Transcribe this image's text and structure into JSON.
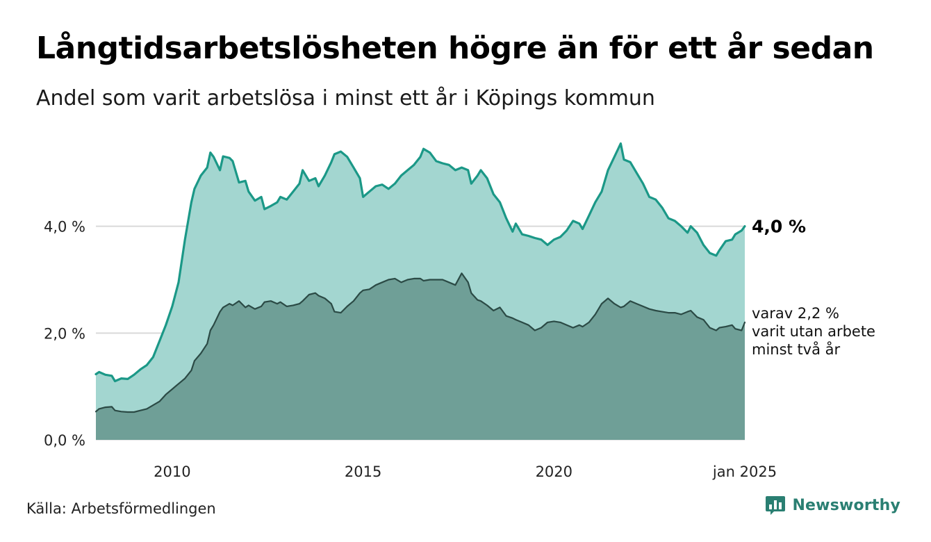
{
  "title": "Långtidsarbetslösheten högre än för ett år sedan",
  "subtitle": "Andel som varit arbetslösa i minst ett år i Köpings kommun",
  "source": "Källa: Arbetsförmedlingen",
  "brand": {
    "name": "Newsworthy",
    "icon": "bar-chart-icon"
  },
  "colors": {
    "series1_line": "#1b9887",
    "series1_fill": "#a3d6d0",
    "series2_line": "#2b4a45",
    "series2_fill": "#6f9f97",
    "grid": "#d9d9d9",
    "brand": "#2a7f72"
  },
  "chart_data": {
    "type": "area",
    "title": "Långtidsarbetslösheten högre än för ett år sedan",
    "subtitle": "Andel som varit arbetslösa i minst ett år i Köpings kommun",
    "x_range": [
      "2008-01",
      "2025-01"
    ],
    "ylim": [
      0,
      5.7
    ],
    "y_ticks": [
      {
        "value": 0,
        "label": "0,0 %"
      },
      {
        "value": 2,
        "label": "2,0 %"
      },
      {
        "value": 4,
        "label": "4,0 %"
      }
    ],
    "x_ticks": [
      {
        "value": "2010-01",
        "label": "2010"
      },
      {
        "value": "2015-01",
        "label": "2015"
      },
      {
        "value": "2020-01",
        "label": "2020"
      },
      {
        "value": "2025-01",
        "label": "jan 2025"
      }
    ],
    "grid": "horizontal",
    "series": [
      {
        "end_label": "4,0 %",
        "points": [
          [
            "2008-01",
            1.23
          ],
          [
            "2008-02",
            1.27
          ],
          [
            "2008-04",
            1.22
          ],
          [
            "2008-06",
            1.2
          ],
          [
            "2008-07",
            1.1
          ],
          [
            "2008-09",
            1.15
          ],
          [
            "2008-11",
            1.14
          ],
          [
            "2009-01",
            1.22
          ],
          [
            "2009-03",
            1.32
          ],
          [
            "2009-05",
            1.4
          ],
          [
            "2009-07",
            1.55
          ],
          [
            "2009-09",
            1.85
          ],
          [
            "2009-11",
            2.15
          ],
          [
            "2010-01",
            2.5
          ],
          [
            "2010-03",
            2.95
          ],
          [
            "2010-05",
            3.75
          ],
          [
            "2010-07",
            4.45
          ],
          [
            "2010-08",
            4.7
          ],
          [
            "2010-10",
            4.95
          ],
          [
            "2010-12",
            5.1
          ],
          [
            "2011-01",
            5.38
          ],
          [
            "2011-02",
            5.3
          ],
          [
            "2011-04",
            5.05
          ],
          [
            "2011-05",
            5.31
          ],
          [
            "2011-07",
            5.28
          ],
          [
            "2011-08",
            5.22
          ],
          [
            "2011-10",
            4.82
          ],
          [
            "2011-12",
            4.85
          ],
          [
            "2012-01",
            4.65
          ],
          [
            "2012-03",
            4.48
          ],
          [
            "2012-05",
            4.55
          ],
          [
            "2012-06",
            4.32
          ],
          [
            "2012-08",
            4.38
          ],
          [
            "2012-10",
            4.45
          ],
          [
            "2012-11",
            4.55
          ],
          [
            "2013-01",
            4.5
          ],
          [
            "2013-03",
            4.65
          ],
          [
            "2013-05",
            4.8
          ],
          [
            "2013-06",
            5.05
          ],
          [
            "2013-08",
            4.85
          ],
          [
            "2013-10",
            4.9
          ],
          [
            "2013-11",
            4.75
          ],
          [
            "2014-01",
            4.95
          ],
          [
            "2014-03",
            5.2
          ],
          [
            "2014-04",
            5.35
          ],
          [
            "2014-06",
            5.4
          ],
          [
            "2014-08",
            5.3
          ],
          [
            "2014-10",
            5.1
          ],
          [
            "2014-12",
            4.9
          ],
          [
            "2015-01",
            4.55
          ],
          [
            "2015-03",
            4.65
          ],
          [
            "2015-05",
            4.75
          ],
          [
            "2015-07",
            4.78
          ],
          [
            "2015-09",
            4.7
          ],
          [
            "2015-11",
            4.8
          ],
          [
            "2016-01",
            4.95
          ],
          [
            "2016-03",
            5.05
          ],
          [
            "2016-05",
            5.15
          ],
          [
            "2016-07",
            5.3
          ],
          [
            "2016-08",
            5.45
          ],
          [
            "2016-10",
            5.38
          ],
          [
            "2016-12",
            5.22
          ],
          [
            "2017-02",
            5.18
          ],
          [
            "2017-04",
            5.15
          ],
          [
            "2017-06",
            5.05
          ],
          [
            "2017-08",
            5.1
          ],
          [
            "2017-10",
            5.05
          ],
          [
            "2017-11",
            4.8
          ],
          [
            "2018-01",
            4.95
          ],
          [
            "2018-02",
            5.05
          ],
          [
            "2018-04",
            4.9
          ],
          [
            "2018-06",
            4.6
          ],
          [
            "2018-08",
            4.45
          ],
          [
            "2018-10",
            4.15
          ],
          [
            "2018-12",
            3.9
          ],
          [
            "2019-01",
            4.05
          ],
          [
            "2019-03",
            3.85
          ],
          [
            "2019-05",
            3.82
          ],
          [
            "2019-07",
            3.78
          ],
          [
            "2019-09",
            3.75
          ],
          [
            "2019-11",
            3.65
          ],
          [
            "2020-01",
            3.75
          ],
          [
            "2020-03",
            3.8
          ],
          [
            "2020-05",
            3.92
          ],
          [
            "2020-07",
            4.1
          ],
          [
            "2020-09",
            4.05
          ],
          [
            "2020-10",
            3.95
          ],
          [
            "2020-12",
            4.2
          ],
          [
            "2021-02",
            4.45
          ],
          [
            "2021-04",
            4.65
          ],
          [
            "2021-06",
            5.05
          ],
          [
            "2021-08",
            5.3
          ],
          [
            "2021-10",
            5.55
          ],
          [
            "2021-11",
            5.25
          ],
          [
            "2022-01",
            5.2
          ],
          [
            "2022-03",
            5.0
          ],
          [
            "2022-05",
            4.8
          ],
          [
            "2022-07",
            4.55
          ],
          [
            "2022-09",
            4.5
          ],
          [
            "2022-11",
            4.35
          ],
          [
            "2023-01",
            4.15
          ],
          [
            "2023-03",
            4.1
          ],
          [
            "2023-05",
            4.0
          ],
          [
            "2023-07",
            3.88
          ],
          [
            "2023-08",
            4.0
          ],
          [
            "2023-10",
            3.88
          ],
          [
            "2023-12",
            3.65
          ],
          [
            "2024-02",
            3.5
          ],
          [
            "2024-04",
            3.45
          ],
          [
            "2024-05",
            3.55
          ],
          [
            "2024-07",
            3.72
          ],
          [
            "2024-09",
            3.75
          ],
          [
            "2024-10",
            3.85
          ],
          [
            "2024-12",
            3.92
          ],
          [
            "2025-01",
            4.0
          ]
        ]
      },
      {
        "end_label": "varav 2,2 % varit utan arbete minst två år",
        "end_label_lines": [
          "varav 2,2 %",
          "varit utan arbete",
          "minst två år"
        ],
        "points": [
          [
            "2008-01",
            0.53
          ],
          [
            "2008-02",
            0.58
          ],
          [
            "2008-04",
            0.61
          ],
          [
            "2008-06",
            0.62
          ],
          [
            "2008-07",
            0.55
          ],
          [
            "2008-09",
            0.53
          ],
          [
            "2008-11",
            0.52
          ],
          [
            "2009-01",
            0.52
          ],
          [
            "2009-03",
            0.55
          ],
          [
            "2009-05",
            0.58
          ],
          [
            "2009-07",
            0.65
          ],
          [
            "2009-09",
            0.72
          ],
          [
            "2009-11",
            0.85
          ],
          [
            "2010-01",
            0.95
          ],
          [
            "2010-03",
            1.05
          ],
          [
            "2010-05",
            1.15
          ],
          [
            "2010-07",
            1.3
          ],
          [
            "2010-08",
            1.48
          ],
          [
            "2010-10",
            1.62
          ],
          [
            "2010-12",
            1.8
          ],
          [
            "2011-01",
            2.05
          ],
          [
            "2011-02",
            2.15
          ],
          [
            "2011-04",
            2.4
          ],
          [
            "2011-05",
            2.48
          ],
          [
            "2011-07",
            2.55
          ],
          [
            "2011-08",
            2.52
          ],
          [
            "2011-10",
            2.6
          ],
          [
            "2011-12",
            2.48
          ],
          [
            "2012-01",
            2.52
          ],
          [
            "2012-03",
            2.45
          ],
          [
            "2012-05",
            2.5
          ],
          [
            "2012-06",
            2.58
          ],
          [
            "2012-08",
            2.6
          ],
          [
            "2012-10",
            2.55
          ],
          [
            "2012-11",
            2.58
          ],
          [
            "2013-01",
            2.5
          ],
          [
            "2013-03",
            2.52
          ],
          [
            "2013-05",
            2.55
          ],
          [
            "2013-06",
            2.6
          ],
          [
            "2013-08",
            2.72
          ],
          [
            "2013-10",
            2.75
          ],
          [
            "2013-11",
            2.7
          ],
          [
            "2014-01",
            2.65
          ],
          [
            "2014-03",
            2.55
          ],
          [
            "2014-04",
            2.4
          ],
          [
            "2014-06",
            2.38
          ],
          [
            "2014-08",
            2.5
          ],
          [
            "2014-10",
            2.6
          ],
          [
            "2014-12",
            2.75
          ],
          [
            "2015-01",
            2.8
          ],
          [
            "2015-03",
            2.82
          ],
          [
            "2015-05",
            2.9
          ],
          [
            "2015-07",
            2.95
          ],
          [
            "2015-09",
            3.0
          ],
          [
            "2015-11",
            3.02
          ],
          [
            "2016-01",
            2.95
          ],
          [
            "2016-03",
            3.0
          ],
          [
            "2016-05",
            3.02
          ],
          [
            "2016-07",
            3.02
          ],
          [
            "2016-08",
            2.98
          ],
          [
            "2016-10",
            3.0
          ],
          [
            "2016-12",
            3.0
          ],
          [
            "2017-02",
            3.0
          ],
          [
            "2017-04",
            2.95
          ],
          [
            "2017-06",
            2.9
          ],
          [
            "2017-08",
            3.12
          ],
          [
            "2017-10",
            2.95
          ],
          [
            "2017-11",
            2.75
          ],
          [
            "2018-01",
            2.62
          ],
          [
            "2018-02",
            2.6
          ],
          [
            "2018-04",
            2.52
          ],
          [
            "2018-06",
            2.42
          ],
          [
            "2018-08",
            2.48
          ],
          [
            "2018-10",
            2.32
          ],
          [
            "2018-12",
            2.28
          ],
          [
            "2019-01",
            2.25
          ],
          [
            "2019-03",
            2.2
          ],
          [
            "2019-05",
            2.15
          ],
          [
            "2019-07",
            2.05
          ],
          [
            "2019-09",
            2.1
          ],
          [
            "2019-11",
            2.2
          ],
          [
            "2020-01",
            2.22
          ],
          [
            "2020-03",
            2.2
          ],
          [
            "2020-05",
            2.15
          ],
          [
            "2020-07",
            2.1
          ],
          [
            "2020-09",
            2.15
          ],
          [
            "2020-10",
            2.12
          ],
          [
            "2020-12",
            2.2
          ],
          [
            "2021-02",
            2.35
          ],
          [
            "2021-04",
            2.55
          ],
          [
            "2021-06",
            2.65
          ],
          [
            "2021-08",
            2.55
          ],
          [
            "2021-10",
            2.48
          ],
          [
            "2021-11",
            2.5
          ],
          [
            "2022-01",
            2.6
          ],
          [
            "2022-03",
            2.55
          ],
          [
            "2022-05",
            2.5
          ],
          [
            "2022-07",
            2.45
          ],
          [
            "2022-09",
            2.42
          ],
          [
            "2022-11",
            2.4
          ],
          [
            "2023-01",
            2.38
          ],
          [
            "2023-03",
            2.38
          ],
          [
            "2023-05",
            2.35
          ],
          [
            "2023-07",
            2.4
          ],
          [
            "2023-08",
            2.42
          ],
          [
            "2023-10",
            2.3
          ],
          [
            "2023-12",
            2.25
          ],
          [
            "2024-02",
            2.1
          ],
          [
            "2024-04",
            2.05
          ],
          [
            "2024-05",
            2.1
          ],
          [
            "2024-07",
            2.12
          ],
          [
            "2024-09",
            2.15
          ],
          [
            "2024-10",
            2.08
          ],
          [
            "2024-12",
            2.05
          ],
          [
            "2025-01",
            2.2
          ]
        ]
      }
    ]
  }
}
